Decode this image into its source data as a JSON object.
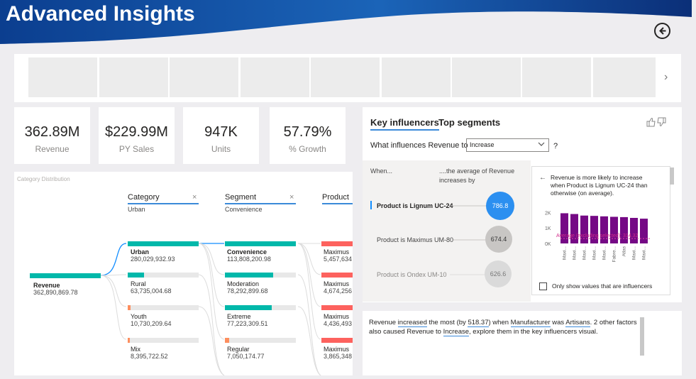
{
  "header": {
    "title": "Advanced Insights",
    "back_icon": "back-arrow-icon"
  },
  "slicer": {
    "tile_count": 9,
    "next_icon": "chevron-right-icon",
    "next_glyph": "›"
  },
  "kpis": [
    {
      "value": "362.89M",
      "label": "Revenue"
    },
    {
      "value": "$229.99M",
      "label": "PY Sales"
    },
    {
      "value": "947K",
      "label": "Units"
    },
    {
      "value": "57.79%",
      "label": "% Growth"
    }
  ],
  "tree": {
    "title": "Category Distribution",
    "root": {
      "label": "Revenue",
      "value": "362,890,869.78"
    },
    "levels": [
      {
        "header": "Category",
        "selected": "Urban",
        "close": "×"
      },
      {
        "header": "Segment",
        "selected": "Convenience",
        "close": "×"
      },
      {
        "header": "Product"
      }
    ],
    "category_nodes": [
      {
        "name": "Urban",
        "value": "280,029,932.93",
        "share": 0.77
      },
      {
        "name": "Rural",
        "value": "63,735,004.68",
        "share": 0.18
      },
      {
        "name": "Youth",
        "value": "10,730,209.64",
        "share": 0.03
      },
      {
        "name": "Mix",
        "value": "8,395,722.52",
        "share": 0.02
      }
    ],
    "segment_nodes": [
      {
        "name": "Convenience",
        "value": "113,808,200.98",
        "share": 0.41
      },
      {
        "name": "Moderation",
        "value": "78,292,899.68",
        "share": 0.28
      },
      {
        "name": "Extreme",
        "value": "77,223,309.51",
        "share": 0.28
      },
      {
        "name": "Regular",
        "value": "7,050,174.77",
        "share": 0.03
      }
    ],
    "product_nodes": [
      {
        "name": "Maximus",
        "value": "5,457,634"
      },
      {
        "name": "Maximus",
        "value": "4,674,256"
      },
      {
        "name": "Maximus",
        "value": "4,436,493"
      },
      {
        "name": "Maximus",
        "value": "3,865,348"
      }
    ],
    "colors": {
      "teal": "#01b8aa",
      "coral": "#fd625e",
      "track": "#e8e8e8",
      "link": "#118dff"
    }
  },
  "key_influencers": {
    "tabs": [
      "Key influencers",
      "Top segments"
    ],
    "question": "What influences Revenue to",
    "select_value": "Increase",
    "help": "?",
    "col_when": "When...",
    "col_avg_line1": "....the average of Revenue",
    "col_avg_line2": "increases by",
    "influencers": [
      {
        "label": "Product is Lignum UC-24",
        "value": "786.8",
        "selected": true
      },
      {
        "label": "Product is Maximus UM-80",
        "value": "674.4",
        "selected": false
      },
      {
        "label": "Product is Ondex UM-10",
        "value": "626.6",
        "selected": false
      }
    ],
    "detail": {
      "back_glyph": "←",
      "text_lines": [
        "Revenue is more likely to increase",
        "when Product is Lignum UC-24 than",
        "otherwise (on average)."
      ],
      "y_ticks": [
        "2K",
        "1K",
        "0K"
      ],
      "avg_label": "Average (excluding selected): 314.32",
      "checkbox_label": "Only show values that are influencers",
      "bar_color": "#750985"
    }
  },
  "chart_data": {
    "type": "bar",
    "categories": [
      "Maxi...",
      "Maxi...",
      "Maxi...",
      "Maxi...",
      "Maxi...",
      "Fabre...",
      "Atlas",
      "Maxi...",
      "Maxi..."
    ],
    "values": [
      1950,
      1900,
      1800,
      1780,
      1750,
      1720,
      1700,
      1650,
      1600
    ],
    "ylim": [
      0,
      2200
    ],
    "reference_line": 314.32
  },
  "narrative": {
    "text_before": "Revenue ",
    "hl1": "increased",
    "t2": " the most (by ",
    "hl2": "518.37",
    "t3": ") when ",
    "hl3": "Manufacturer",
    "t4": " was ",
    "hl4": "Artisans",
    "t5": ". 2 other factors also caused Revenue to ",
    "hl5": "Increase",
    "t6": ", explore them in the key influencers visual."
  }
}
